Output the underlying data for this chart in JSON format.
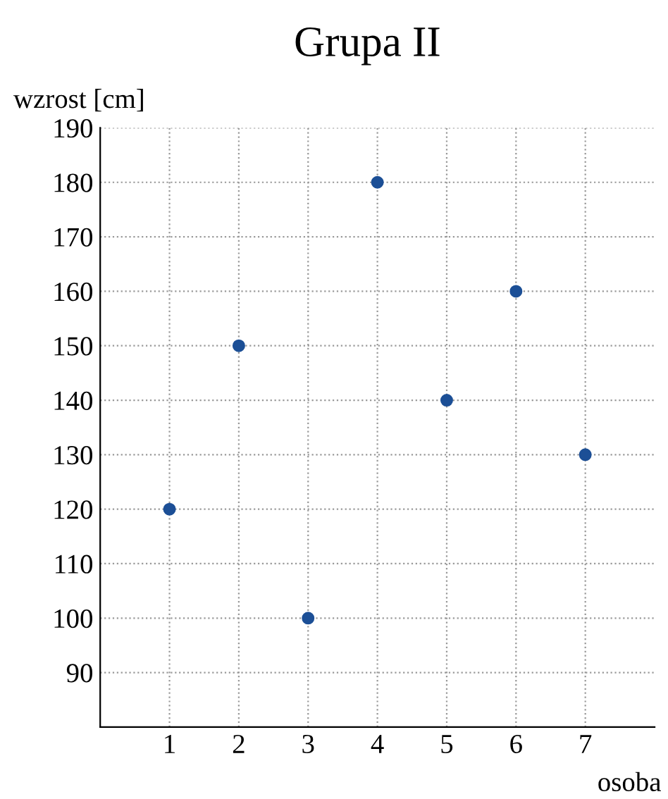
{
  "chart_data": {
    "type": "scatter",
    "title": "Grupa II",
    "xlabel": "osoba",
    "ylabel": "wzrost [cm]",
    "x": [
      1,
      2,
      3,
      4,
      5,
      6,
      7
    ],
    "series": [
      {
        "color": "#1c4f96",
        "values": [
          120,
          150,
          100,
          180,
          140,
          160,
          130
        ]
      }
    ],
    "xlim": [
      0,
      8
    ],
    "ylim": [
      80,
      190
    ],
    "xticks": [
      1,
      2,
      3,
      4,
      5,
      6,
      7
    ],
    "yticks": [
      90,
      100,
      110,
      120,
      130,
      140,
      150,
      160,
      170,
      180,
      190
    ],
    "grid": true,
    "marker": "circle",
    "legend": false
  }
}
